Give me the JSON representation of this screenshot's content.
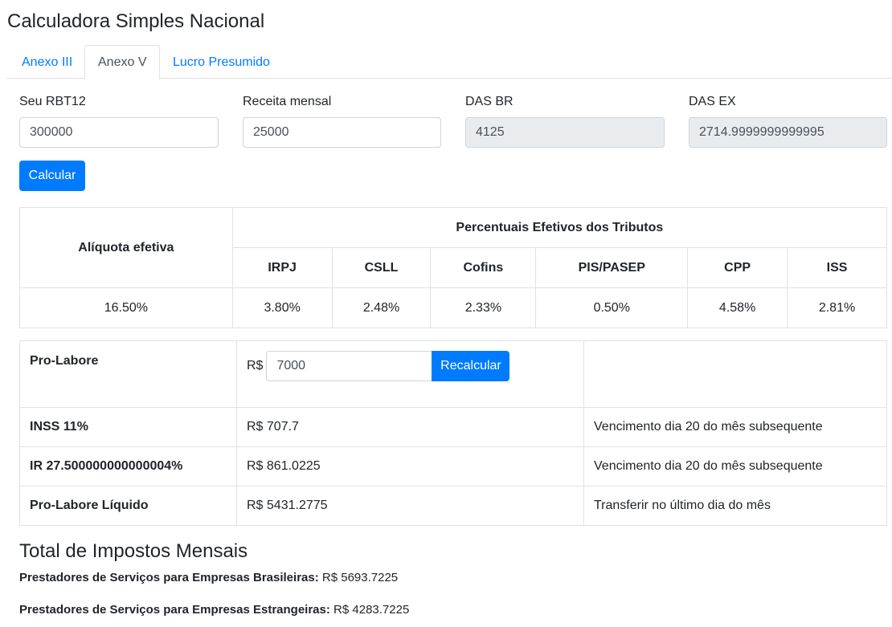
{
  "page_title": "Calculadora Simples Nacional",
  "tabs": [
    {
      "label": "Anexo III"
    },
    {
      "label": "Anexo V"
    },
    {
      "label": "Lucro Presumido"
    }
  ],
  "form": {
    "rbt12_label": "Seu RBT12",
    "rbt12_value": "300000",
    "receita_label": "Receita mensal",
    "receita_value": "25000",
    "das_br_label": "DAS BR",
    "das_br_value": "4125",
    "das_ex_label": "DAS EX",
    "das_ex_value": "2714.9999999999995",
    "calc_button": "Calcular"
  },
  "tax_table": {
    "aliquota_header": "Alíquota efetiva",
    "percent_header": "Percentuais Efetivos dos Tributos",
    "columns": [
      "IRPJ",
      "CSLL",
      "Cofins",
      "PIS/PASEP",
      "CPP",
      "ISS"
    ],
    "aliquota_value": "16.50%",
    "values": [
      "3.80%",
      "2.48%",
      "2.33%",
      "0.50%",
      "4.58%",
      "2.81%"
    ]
  },
  "prolabore": {
    "label": "Pro-Labore",
    "currency": "R$",
    "value": "7000",
    "recalc_button": "Recalcular",
    "rows": [
      {
        "label": "INSS 11%",
        "value": "R$ 707.7",
        "note": "Vencimento dia 20 do mês subsequente"
      },
      {
        "label": "IR 27.500000000000004%",
        "value": "R$ 861.0225",
        "note": "Vencimento dia 20 do mês subsequente"
      },
      {
        "label": "Pro-Labore Líquido",
        "value": "R$ 5431.2775",
        "note": "Transferir no último dia do mês"
      }
    ]
  },
  "totals": {
    "title": "Total de Impostos Mensais",
    "br_label": "Prestadores de Serviços para Empresas Brasileiras:",
    "br_value": "R$ 5693.7225",
    "ex_label": "Prestadores de Serviços para Empresas Estrangeiras:",
    "ex_value": "R$ 4283.7225"
  }
}
